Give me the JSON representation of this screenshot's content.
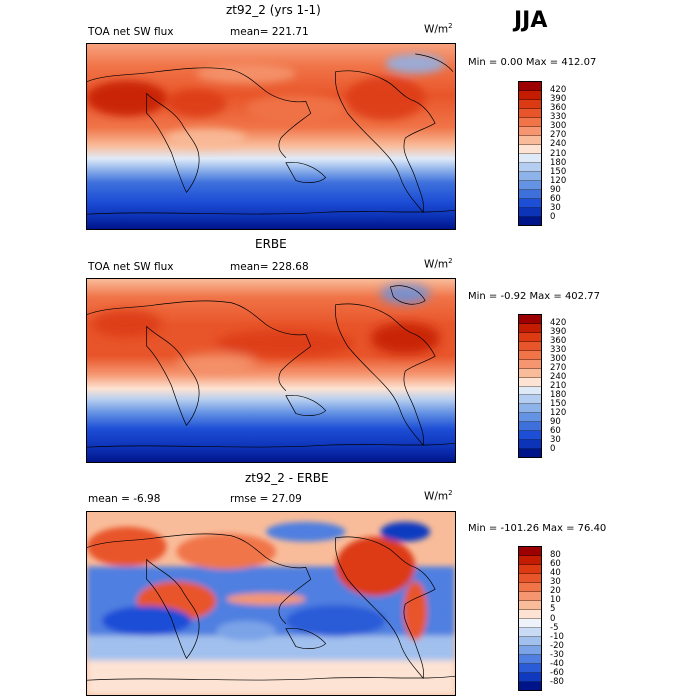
{
  "season": "JJA",
  "units": {
    "base": "W/m",
    "exp": "2"
  },
  "panels": [
    {
      "title": "zt92_2 (yrs 1-1)",
      "left_label": "TOA net SW flux",
      "right_label": "mean= 221.71",
      "minmax": "Min =    0.00 Max = 412.07",
      "colors": [
        "#9c0000",
        "#c41c00",
        "#dc3a12",
        "#e8552a",
        "#f07448",
        "#f59670",
        "#f9bc9a",
        "#fde3d3",
        "#dfeaf9",
        "#b5cdf0",
        "#8eb2ea",
        "#6593e3",
        "#3e70dc",
        "#1d4ed6",
        "#0d33b8",
        "#00148a"
      ],
      "ticks": [
        "420",
        "390",
        "360",
        "330",
        "300",
        "270",
        "240",
        "210",
        "180",
        "150",
        "120",
        "90",
        "60",
        "30",
        "0"
      ]
    },
    {
      "title": "ERBE",
      "left_label": "TOA net SW flux",
      "right_label": "mean= 228.68",
      "minmax": "Min =   -0.92 Max = 402.77",
      "colors": [
        "#9c0000",
        "#c41c00",
        "#dc3a12",
        "#e8552a",
        "#f07448",
        "#f59670",
        "#f9bc9a",
        "#fde3d3",
        "#dfeaf9",
        "#b5cdf0",
        "#8eb2ea",
        "#6593e3",
        "#3e70dc",
        "#1d4ed6",
        "#0d33b8",
        "#00148a"
      ],
      "ticks": [
        "420",
        "390",
        "360",
        "330",
        "300",
        "270",
        "240",
        "210",
        "180",
        "150",
        "120",
        "90",
        "60",
        "30",
        "0"
      ]
    },
    {
      "title": "zt92_2 - ERBE",
      "left_label": "mean =   -6.98",
      "right_label": "rmse =   27.09",
      "minmax": "Min = -101.26 Max =  76.40",
      "colors": [
        "#9c0000",
        "#c41c00",
        "#dc3a12",
        "#e8552a",
        "#f07448",
        "#f59670",
        "#f9bc9a",
        "#fde3d3",
        "#eef3fb",
        "#c9dbf4",
        "#a1c0ee",
        "#7aa3e8",
        "#4f7fe0",
        "#2b5cd8",
        "#0f3ac0",
        "#00148a"
      ],
      "ticks": [
        "80",
        "60",
        "40",
        "30",
        "20",
        "10",
        "5",
        "0",
        "-5",
        "-10",
        "-20",
        "-30",
        "-40",
        "-60",
        "-80"
      ]
    }
  ]
}
